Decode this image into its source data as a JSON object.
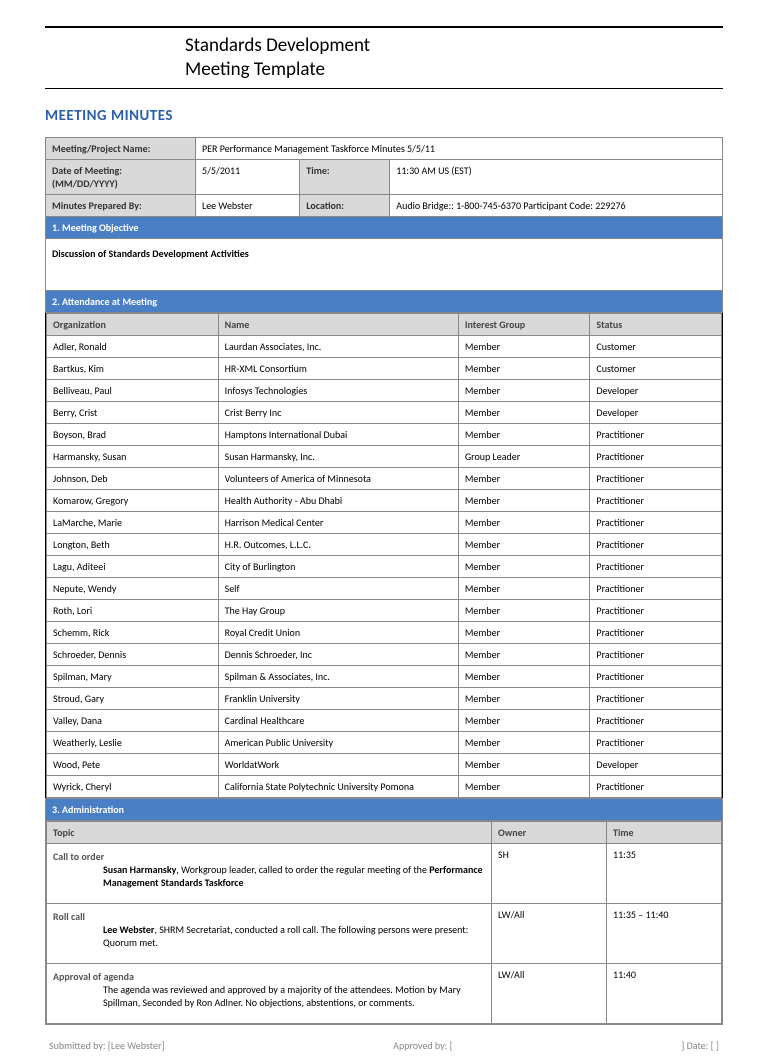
{
  "header": {
    "title_line1": "Standards Development",
    "title_line2": "Meeting Template"
  },
  "section_title": "MEETING MINUTES",
  "colors": {
    "blue_header": "#4a7fc5",
    "gray_header": "#d9d9d9",
    "title_blue": "#2d5ea8",
    "border": "#888888"
  },
  "info": {
    "project_label": "Meeting/Project Name:",
    "project_value": "PER Performance Management Taskforce Minutes 5/5/11",
    "date_label": "Date of Meeting: (MM/DD/YYYY)",
    "date_value": "5/5/2011",
    "time_label": "Time:",
    "time_value": "11:30 AM US (EST)",
    "prepared_label": "Minutes Prepared By:",
    "prepared_value": "Lee Webster",
    "location_label": "Location:",
    "location_value": "Audio Bridge:: 1-800-745-6370 Participant Code: 229276"
  },
  "objective": {
    "heading": "1. Meeting Objective",
    "text": "Discussion of Standards Development Activities"
  },
  "attendance": {
    "heading": "2. Attendance at Meeting",
    "col_org": "Organization",
    "col_name": "Name",
    "col_ig": "Interest Group",
    "col_status": "Status",
    "rows": [
      {
        "org": "Adler, Ronald",
        "name": "Laurdan Associates, Inc.",
        "ig": "Member",
        "status": "Customer"
      },
      {
        "org": "Bartkus, Kim",
        "name": "HR-XML Consortium",
        "ig": "Member",
        "status": "Customer"
      },
      {
        "org": "Belliveau, Paul",
        "name": "Infosys Technologies",
        "ig": "Member",
        "status": "Developer"
      },
      {
        "org": "Berry, Crist",
        "name": "Crist Berry Inc",
        "ig": "Member",
        "status": "Developer"
      },
      {
        "org": "Boyson, Brad",
        "name": "Hamptons International Dubai",
        "ig": "Member",
        "status": "Practitioner"
      },
      {
        "org": "Harmansky, Susan",
        "name": "Susan Harmansky, Inc.",
        "ig": "Group Leader",
        "status": "Practitioner"
      },
      {
        "org": "Johnson, Deb",
        "name": "Volunteers of America of Minnesota",
        "ig": "Member",
        "status": "Practitioner"
      },
      {
        "org": "Komarow, Gregory",
        "name": "Health Authority - Abu Dhabi",
        "ig": "Member",
        "status": "Practitioner"
      },
      {
        "org": "LaMarche, Marie",
        "name": "Harrison Medical Center",
        "ig": "Member",
        "status": "Practitioner"
      },
      {
        "org": "Longton, Beth",
        "name": "H.R. Outcomes, L.L.C.",
        "ig": "Member",
        "status": "Practitioner"
      },
      {
        "org": "Lagu, Aditeei",
        "name": "City of Burlington",
        "ig": "Member",
        "status": "Practitioner"
      },
      {
        "org": "Nepute, Wendy",
        "name": "Self",
        "ig": "Member",
        "status": "Practitioner"
      },
      {
        "org": "Roth, Lori",
        "name": "The Hay Group",
        "ig": "Member",
        "status": "Practitioner"
      },
      {
        "org": "Schemm, Rick",
        "name": "Royal Credit Union",
        "ig": "Member",
        "status": "Practitioner"
      },
      {
        "org": "Schroeder, Dennis",
        "name": "Dennis Schroeder, Inc",
        "ig": "Member",
        "status": "Practitioner"
      },
      {
        "org": "Spilman, Mary",
        "name": "Spilman & Associates, Inc.",
        "ig": "Member",
        "status": "Practitioner"
      },
      {
        "org": "Stroud, Gary",
        "name": "Franklin University",
        "ig": "Member",
        "status": "Practitioner"
      },
      {
        "org": "Valley, Dana",
        "name": "Cardinal Healthcare",
        "ig": "Member",
        "status": "Practitioner"
      },
      {
        "org": "Weatherly, Leslie",
        "name": "American Public University",
        "ig": "Member",
        "status": "Practitioner"
      },
      {
        "org": "Wood, Pete",
        "name": "WorldatWork",
        "ig": "Member",
        "status": "Developer"
      },
      {
        "org": "Wyrick, Cheryl",
        "name": "California State Polytechnic University Pomona",
        "ig": "Member",
        "status": "Practitioner"
      }
    ]
  },
  "admin": {
    "heading": "3. Administration",
    "col_topic": "Topic",
    "col_owner": "Owner",
    "col_time": "Time",
    "items": [
      {
        "topic": "Call to order",
        "desc_prefix": "Susan Harmansky",
        "desc_rest": ", Workgroup leader, called to order the regular meeting of the ",
        "desc_suffix": "Performance Management Standards Taskforce",
        "owner": "SH",
        "time": "11:35"
      },
      {
        "topic": "Roll call",
        "desc_prefix": "Lee Webster",
        "desc_rest": ", SHRM Secretariat, conducted a roll call. The following persons were present: Quorum met.",
        "desc_suffix": "",
        "owner": "LW/All",
        "time": "11:35 – 11:40"
      },
      {
        "topic": "Approval of agenda",
        "desc_prefix": "",
        "desc_rest": "The agenda was reviewed and approved by a majority of the attendees. Motion by Mary Spillman, Seconded by Ron Adlner. No objections, abstentions, or comments.",
        "desc_suffix": "",
        "owner": "LW/All",
        "time": "11:40"
      }
    ]
  },
  "footer": {
    "submitted": "Submitted by: [Lee Webster]",
    "approved": "Approved by: [",
    "date": "]  Date: [           ]"
  }
}
